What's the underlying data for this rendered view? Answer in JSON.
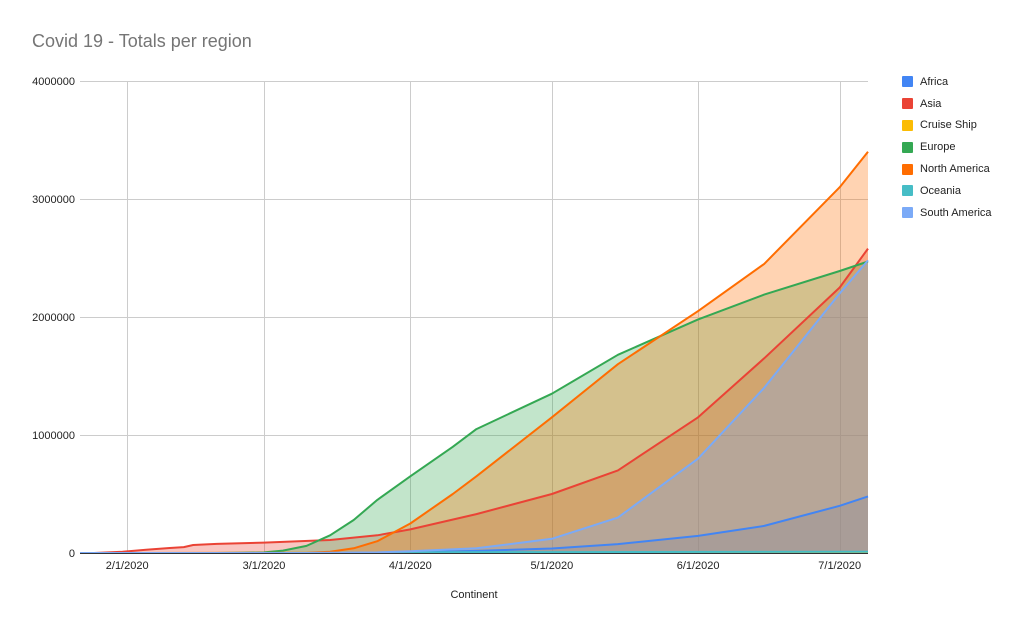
{
  "chart_data": {
    "type": "area",
    "title": "Covid 19 - Totals per region",
    "xlabel": "Continent",
    "ylabel": "",
    "ylim": [
      0,
      4000000
    ],
    "yticks": [
      0,
      1000000,
      2000000,
      3000000,
      4000000
    ],
    "ytick_labels": [
      "0",
      "1000000",
      "2000000",
      "3000000",
      "4000000"
    ],
    "xlim": [
      "2020-01-22",
      "2020-07-07"
    ],
    "xticks": [
      "2020-02-01",
      "2020-03-01",
      "2020-04-01",
      "2020-05-01",
      "2020-06-01",
      "2020-07-01"
    ],
    "xtick_labels": [
      "2/1/2020",
      "3/1/2020",
      "4/1/2020",
      "5/1/2020",
      "6/1/2020",
      "7/1/2020"
    ],
    "grid": true,
    "legend_position": "right",
    "stacked": false,
    "series": [
      {
        "name": "Africa",
        "color": "#4285f4",
        "x": [
          "2020-01-22",
          "2020-02-15",
          "2020-03-10",
          "2020-03-25",
          "2020-04-01",
          "2020-04-15",
          "2020-05-01",
          "2020-05-15",
          "2020-06-01",
          "2020-06-15",
          "2020-07-01",
          "2020-07-07"
        ],
        "values": [
          0,
          0,
          100,
          2500,
          6000,
          18000,
          38000,
          75000,
          145000,
          230000,
          400000,
          480000
        ]
      },
      {
        "name": "Asia",
        "color": "#ea4335",
        "x": [
          "2020-01-22",
          "2020-01-25",
          "2020-01-31",
          "2020-02-05",
          "2020-02-10",
          "2020-02-13",
          "2020-02-15",
          "2020-02-20",
          "2020-03-01",
          "2020-03-15",
          "2020-03-25",
          "2020-04-01",
          "2020-04-15",
          "2020-05-01",
          "2020-05-15",
          "2020-06-01",
          "2020-06-15",
          "2020-07-01",
          "2020-07-07"
        ],
        "values": [
          0,
          0,
          10000,
          28000,
          42000,
          50000,
          68000,
          77000,
          88000,
          110000,
          150000,
          200000,
          330000,
          500000,
          700000,
          1150000,
          1650000,
          2250000,
          2580000
        ]
      },
      {
        "name": "Cruise Ship",
        "color": "#fbbc04",
        "x": [
          "2020-01-22",
          "2020-02-05",
          "2020-02-20",
          "2020-03-10",
          "2020-07-07"
        ],
        "values": [
          0,
          0,
          600,
          710,
          710
        ]
      },
      {
        "name": "Europe",
        "color": "#34a853",
        "x": [
          "2020-01-22",
          "2020-02-20",
          "2020-02-25",
          "2020-03-01",
          "2020-03-05",
          "2020-03-10",
          "2020-03-15",
          "2020-03-20",
          "2020-03-25",
          "2020-04-01",
          "2020-04-10",
          "2020-04-15",
          "2020-05-01",
          "2020-05-15",
          "2020-06-01",
          "2020-06-15",
          "2020-07-01",
          "2020-07-07"
        ],
        "values": [
          0,
          0,
          2000,
          5000,
          20000,
          60000,
          150000,
          280000,
          450000,
          650000,
          900000,
          1050000,
          1350000,
          1680000,
          1980000,
          2190000,
          2390000,
          2470000
        ]
      },
      {
        "name": "North America",
        "color": "#ff6d01",
        "x": [
          "2020-01-22",
          "2020-03-10",
          "2020-03-15",
          "2020-03-20",
          "2020-03-25",
          "2020-04-01",
          "2020-04-10",
          "2020-04-15",
          "2020-05-01",
          "2020-05-15",
          "2020-06-01",
          "2020-06-15",
          "2020-07-01",
          "2020-07-07"
        ],
        "values": [
          0,
          1000,
          10000,
          40000,
          100000,
          250000,
          500000,
          650000,
          1150000,
          1600000,
          2050000,
          2450000,
          3100000,
          3400000
        ]
      },
      {
        "name": "Oceania",
        "color": "#46bdc6",
        "x": [
          "2020-01-22",
          "2020-03-10",
          "2020-03-25",
          "2020-04-10",
          "2020-05-01",
          "2020-07-07"
        ],
        "values": [
          0,
          100,
          2500,
          7000,
          8000,
          10000
        ]
      },
      {
        "name": "South America",
        "color": "#7baaf7",
        "x": [
          "2020-01-22",
          "2020-03-10",
          "2020-03-25",
          "2020-04-01",
          "2020-04-15",
          "2020-05-01",
          "2020-05-15",
          "2020-06-01",
          "2020-06-15",
          "2020-07-01",
          "2020-07-07"
        ],
        "values": [
          0,
          0,
          5000,
          15000,
          40000,
          120000,
          300000,
          800000,
          1400000,
          2200000,
          2480000
        ]
      }
    ]
  }
}
